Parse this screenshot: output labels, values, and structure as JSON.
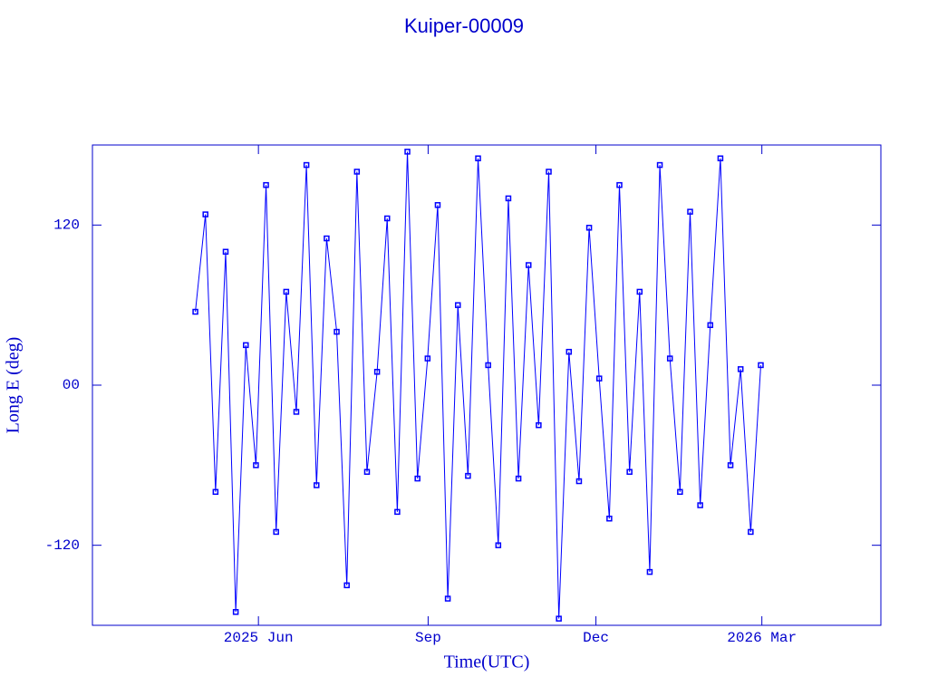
{
  "chart_data": {
    "type": "line",
    "title": "Kuiper-00009",
    "xlabel": "Time(UTC)",
    "ylabel": "Long E (deg)",
    "color": "#0000ff",
    "xlim": [
      2025.1671,
      2026.3384
    ],
    "ylim": [
      -180,
      180
    ],
    "xticks": [
      {
        "value": 2025.4137,
        "label": "2025 Jun"
      },
      {
        "value": 2025.6658,
        "label": "Sep"
      },
      {
        "value": 2025.9151,
        "label": "Dec"
      },
      {
        "value": 2026.1616,
        "label": "2026 Mar"
      }
    ],
    "yticks": [
      -120,
      {
        "value": 0,
        "label": "00"
      },
      120
    ],
    "x": [
      2025.32,
      2025.335,
      2025.35,
      2025.365,
      2025.38,
      2025.395,
      2025.41,
      2025.425,
      2025.44,
      2025.455,
      2025.47,
      2025.485,
      2025.5,
      2025.515,
      2025.53,
      2025.545,
      2025.56,
      2025.575,
      2025.59,
      2025.605,
      2025.62,
      2025.635,
      2025.65,
      2025.665,
      2025.68,
      2025.695,
      2025.71,
      2025.725,
      2025.74,
      2025.755,
      2025.77,
      2025.785,
      2025.8,
      2025.815,
      2025.83,
      2025.845,
      2025.86,
      2025.875,
      2025.89,
      2025.905,
      2025.92,
      2025.935,
      2025.95,
      2025.965,
      2025.98,
      2025.995,
      2026.01,
      2026.025,
      2026.04,
      2026.055,
      2026.07,
      2026.085,
      2026.1,
      2026.115,
      2026.13,
      2026.145,
      2026.16
    ],
    "values": [
      55,
      128,
      -80,
      100,
      -170,
      30,
      -60,
      150,
      -110,
      70,
      -20,
      165,
      -75,
      110,
      40,
      -150,
      160,
      -65,
      10,
      125,
      -95,
      175,
      -70,
      20,
      135,
      -160,
      60,
      -68,
      170,
      15,
      -120,
      140,
      -70,
      90,
      -30,
      160,
      -175,
      25,
      -72,
      118,
      5,
      -100,
      150,
      -65,
      70,
      -140,
      165,
      20,
      -80,
      130,
      -90,
      45,
      170,
      -60,
      12,
      -110,
      15
    ]
  }
}
